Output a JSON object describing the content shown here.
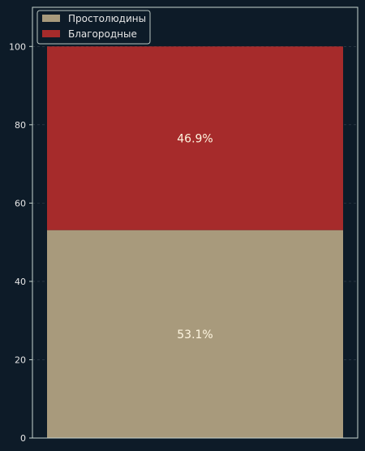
{
  "chart_data": {
    "type": "bar",
    "stacked": true,
    "categories": [
      ""
    ],
    "series": [
      {
        "name": "Простолюдины",
        "values": [
          53.1
        ],
        "label": "53.1%",
        "color": "#a89a7c"
      },
      {
        "name": "Благородные",
        "values": [
          46.9
        ],
        "label": "46.9%",
        "color": "#a62b2b"
      }
    ],
    "ylim": [
      0,
      110
    ],
    "yticks": [
      0,
      20,
      40,
      60,
      80,
      100
    ],
    "ytick_labels": [
      "0",
      "20",
      "40",
      "60",
      "80",
      "100"
    ],
    "grid": true,
    "legend_position": "top-left",
    "colors": {
      "background": "#0d1b28",
      "axis": "#c8d6cf",
      "text": "#e6e6e6",
      "data_label": "#fff6e0",
      "grid": "#3a4652"
    }
  }
}
